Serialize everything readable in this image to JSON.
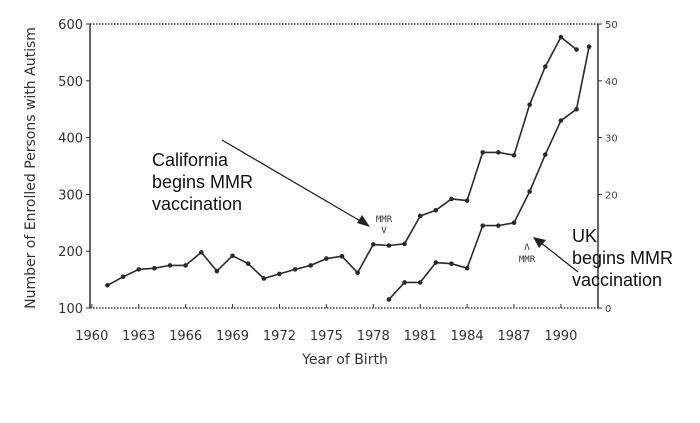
{
  "chart_data": {
    "type": "line",
    "xlabel": "Year of Birth",
    "ylabel": "Number of Enrolled Persons with Autism",
    "x_ticks": [
      "1960",
      "1963",
      "1966",
      "1969",
      "1972",
      "1975",
      "1978",
      "1981",
      "1984",
      "1987",
      "1990"
    ],
    "y_ticks": [
      "100",
      "200",
      "300",
      "400",
      "500",
      "600"
    ],
    "y2_ticks": [
      "0",
      "20",
      "30",
      "40",
      "50"
    ],
    "xlim": [
      1959.5,
      1992.5
    ],
    "ylim": [
      100,
      600
    ],
    "y2lim": [
      0,
      50
    ],
    "grid": false,
    "series": [
      {
        "axis": "left",
        "x": [
          1961,
          1962,
          1963,
          1964,
          1965,
          1966,
          1967,
          1968,
          1969,
          1970,
          1971,
          1972,
          1973,
          1974,
          1975,
          1976,
          1977,
          1978,
          1979,
          1980,
          1981,
          1982,
          1983,
          1984,
          1985,
          1986,
          1987,
          1988,
          1989,
          1990,
          1991
        ],
        "y": [
          140,
          155,
          168,
          170,
          175,
          175,
          198,
          165,
          192,
          178,
          152,
          160,
          168,
          175,
          187,
          191,
          162,
          212,
          210,
          213,
          262,
          272,
          292,
          289,
          374,
          374,
          369,
          458,
          525,
          577,
          555
        ]
      },
      {
        "axis": "right",
        "x": [
          1979,
          1980,
          1981,
          1982,
          1983,
          1984,
          1985,
          1986,
          1987,
          1988,
          1989,
          1990,
          1991,
          1991.8
        ],
        "y": [
          1.5,
          4.5,
          4.5,
          8,
          7.8,
          7,
          14.5,
          14.5,
          15,
          20.5,
          27,
          33,
          35,
          46
        ]
      }
    ],
    "annotations": [
      {
        "text": [
          "California",
          "begins MMR",
          "vaccination"
        ],
        "marker_top": "MMR",
        "marker_bottom": "V"
      },
      {
        "text": [
          "UK",
          "begins MMR",
          "vaccination"
        ],
        "marker_top": "Λ",
        "marker_bottom": "MMR"
      }
    ],
    "colors": {
      "line": "#2a2a2a",
      "axis": "#333333",
      "text": "#111111"
    }
  }
}
